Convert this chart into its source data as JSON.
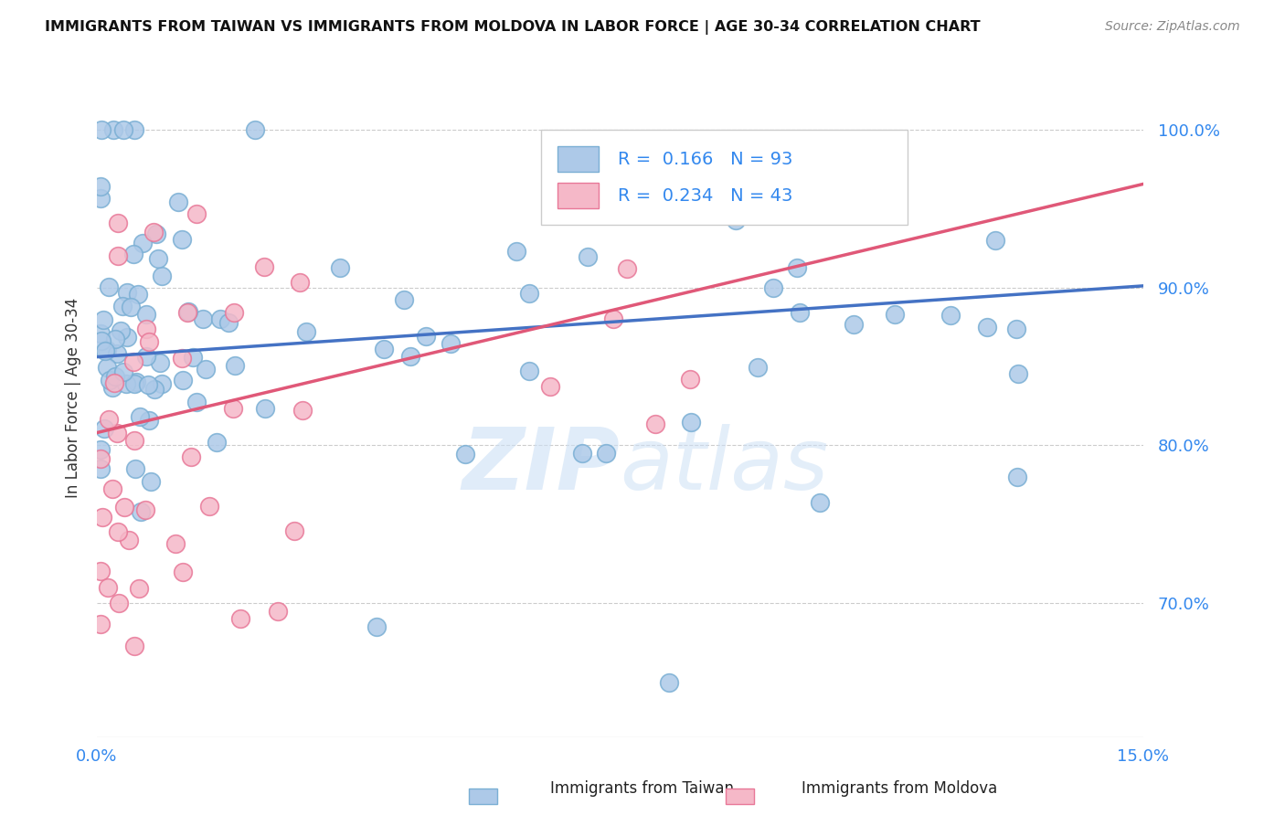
{
  "title": "IMMIGRANTS FROM TAIWAN VS IMMIGRANTS FROM MOLDOVA IN LABOR FORCE | AGE 30-34 CORRELATION CHART",
  "source": "Source: ZipAtlas.com",
  "ylabel": "In Labor Force | Age 30-34",
  "ytick_labels": [
    "70.0%",
    "80.0%",
    "90.0%",
    "100.0%"
  ],
  "ytick_values": [
    0.7,
    0.8,
    0.9,
    1.0
  ],
  "xmin": 0.0,
  "xmax": 0.15,
  "ymin": 0.615,
  "ymax": 1.045,
  "taiwan_color": "#adc9e8",
  "taiwan_edge_color": "#7aafd4",
  "moldova_color": "#f5b8c8",
  "moldova_edge_color": "#e87898",
  "taiwan_line_color": "#4472c4",
  "moldova_line_color": "#e05878",
  "taiwan_R": 0.166,
  "taiwan_N": 93,
  "moldova_R": 0.234,
  "moldova_N": 43,
  "taiwan_intercept": 0.856,
  "taiwan_slope": 0.3,
  "moldova_intercept": 0.808,
  "moldova_slope": 1.05,
  "watermark_zip": "ZIP",
  "watermark_atlas": "atlas",
  "legend_taiwan_label": "Immigrants from Taiwan",
  "legend_moldova_label": "Immigrants from Moldova",
  "background_color": "#ffffff",
  "grid_color": "#cccccc"
}
